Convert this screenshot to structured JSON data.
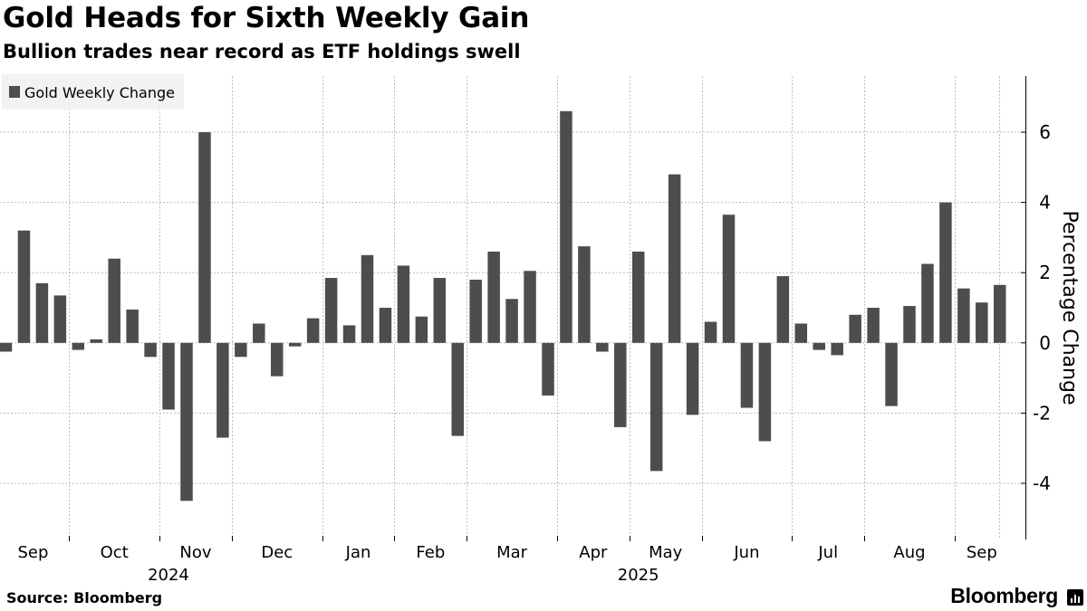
{
  "header": {
    "title": "Gold Heads for Sixth Weekly Gain",
    "subtitle": "Bullion trades near record as ETF holdings swell"
  },
  "footer": {
    "source": "Source: Bloomberg",
    "brand": "Bloomberg",
    "brand_icon": "bar-chart-icon"
  },
  "colors": {
    "bar": "#4d4d4d",
    "grid": "#bdbdbd",
    "legend_bg": "#f2f2f2",
    "text": "#000000"
  },
  "chart_data": {
    "type": "bar",
    "series": [
      {
        "name": "Gold Weekly Change",
        "values": [
          -0.25,
          3.2,
          1.7,
          1.35,
          -0.2,
          0.1,
          2.4,
          0.95,
          -0.4,
          -1.9,
          -4.5,
          6.0,
          -2.7,
          -0.4,
          0.55,
          -0.95,
          -0.1,
          0.7,
          1.85,
          0.5,
          2.5,
          1.0,
          2.2,
          0.75,
          1.85,
          -2.65,
          1.8,
          2.6,
          1.25,
          2.05,
          -1.5,
          6.6,
          2.75,
          -0.25,
          -2.4,
          2.6,
          -3.65,
          4.8,
          -2.05,
          0.6,
          3.65,
          -1.85,
          -2.8,
          1.9,
          0.55,
          -0.2,
          -0.35,
          0.8,
          1.0,
          -1.8,
          1.05,
          2.25,
          4.0,
          1.55,
          1.15,
          1.65
        ]
      }
    ],
    "month_labels": [
      "Sep",
      "Oct",
      "Nov",
      "Dec",
      "Jan",
      "Feb",
      "Mar",
      "Apr",
      "May",
      "Jun",
      "Jul",
      "Aug",
      "Sep"
    ],
    "month_start_index": [
      0,
      4,
      9,
      13,
      18,
      22,
      26,
      31,
      35,
      39,
      44,
      48,
      53
    ],
    "year_labels": [
      "2024",
      "2025"
    ],
    "year_under_month": [
      2,
      8
    ],
    "y_ticks": [
      -4,
      -2,
      0,
      2,
      4,
      6
    ],
    "ylim": [
      -5.6,
      7.6
    ],
    "ylabel": "Percentage Change",
    "legend": {
      "label": "Gold Weekly Change",
      "position": "top-left"
    },
    "grid": true
  }
}
